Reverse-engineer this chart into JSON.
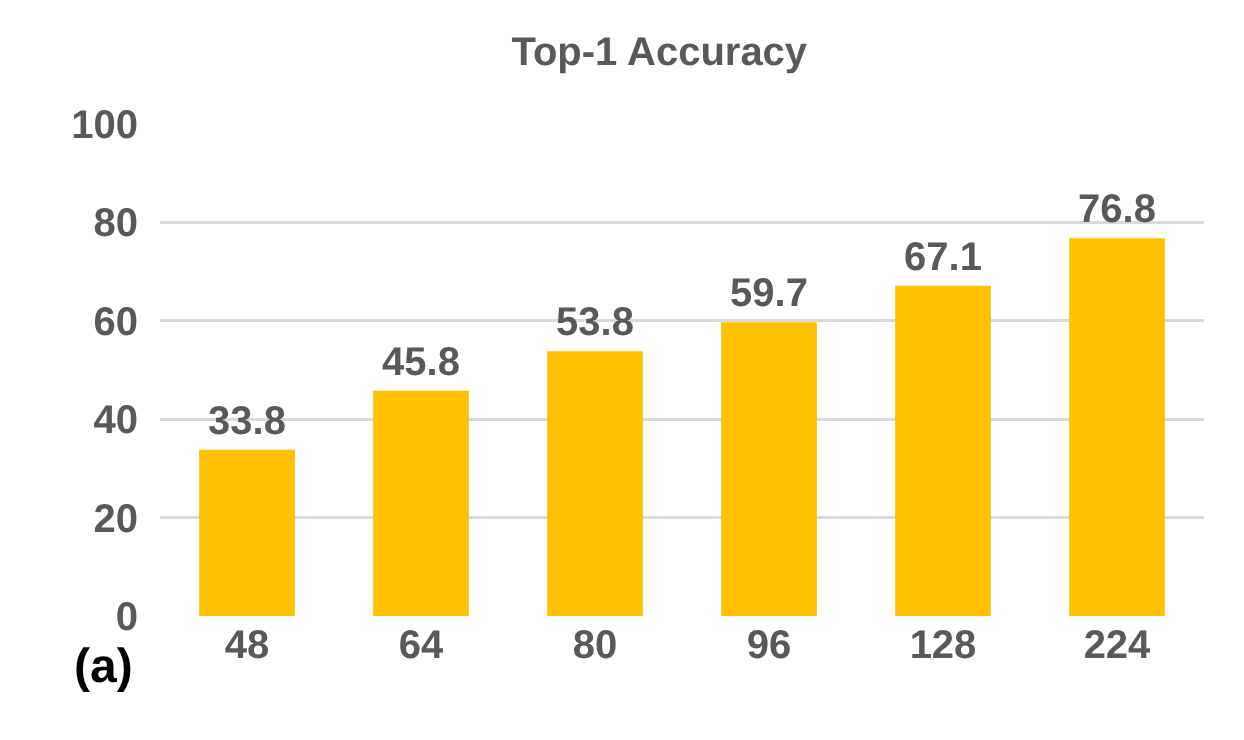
{
  "chart_data": {
    "type": "bar",
    "title": "Top-1 Accuracy",
    "categories": [
      "48",
      "64",
      "80",
      "96",
      "128",
      "224"
    ],
    "values": [
      33.8,
      45.8,
      53.8,
      59.7,
      67.1,
      76.8
    ],
    "color": "#ffc000",
    "ylim": [
      0,
      100
    ],
    "yticks": [
      0,
      20,
      40,
      60,
      80,
      100
    ],
    "grid": "y",
    "data_labels": true,
    "annotations": [
      "(a)"
    ]
  }
}
